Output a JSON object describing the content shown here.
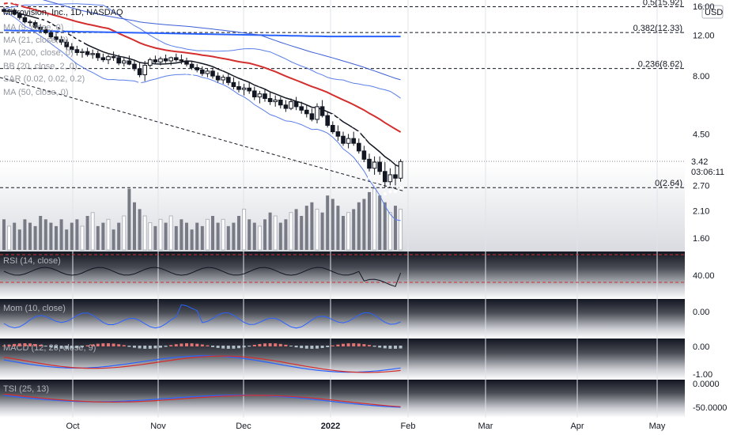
{
  "header": {
    "symbol_line": "Microvision, Inc., 1D, NASDAQ",
    "currency": "USD"
  },
  "legends": [
    "MA (9, close, 0)",
    "MA (21, close, 0)",
    "MA (200, close, 0)",
    "BB (20, close, 2, 0)",
    "SAR (0.02, 0.02, 0.2)",
    "MA (50, close, 0)"
  ],
  "fib_levels": [
    {
      "label": "0.5(15.92)",
      "value": 15.92
    },
    {
      "label": "0.382(12.33)",
      "value": 12.33
    },
    {
      "label": "0.236(8.62)",
      "value": 8.62
    },
    {
      "label": "0(2.64)",
      "value": 2.64
    }
  ],
  "price_badge": {
    "price": "3.42",
    "countdown": "03:06:11",
    "value": 3.42
  },
  "colors": {
    "up": "#ffffff",
    "down": "#131722",
    "ma_black": "#131722",
    "ma_red": "#d32f2f",
    "ma_blue": "#2962ff",
    "bb": "#2962ff",
    "sar": "#ffffff",
    "rsi_band": "#d32f2f",
    "volume": "#787b86"
  },
  "chart_data": {
    "type": "candlestick",
    "x_axis_labels": [
      "Oct",
      "Nov",
      "Dec",
      "2022",
      "Feb",
      "Mar",
      "Apr",
      "May"
    ],
    "y_axis_labels": [
      "16.00",
      "12.00",
      "8.00",
      "4.50",
      "2.70",
      "2.10",
      "1.60"
    ],
    "y_scale": "log",
    "candles": [
      [
        15.5,
        15.9,
        14.9,
        15.2
      ],
      [
        15.2,
        15.6,
        14.7,
        15.4
      ],
      [
        15.4,
        15.7,
        14.6,
        14.8
      ],
      [
        14.8,
        15.1,
        14.0,
        14.3
      ],
      [
        14.3,
        14.6,
        13.5,
        13.7
      ],
      [
        13.7,
        14.0,
        13.1,
        13.6
      ],
      [
        13.6,
        13.9,
        12.8,
        13.0
      ],
      [
        13.0,
        13.4,
        12.4,
        12.7
      ],
      [
        12.7,
        13.1,
        12.1,
        12.3
      ],
      [
        12.3,
        12.6,
        11.6,
        11.8
      ],
      [
        11.8,
        12.2,
        11.2,
        11.5
      ],
      [
        11.5,
        11.9,
        10.9,
        11.2
      ],
      [
        11.2,
        11.5,
        10.4,
        10.7
      ],
      [
        10.7,
        11.1,
        10.1,
        10.4
      ],
      [
        10.4,
        10.8,
        9.8,
        10.1
      ],
      [
        10.1,
        10.5,
        9.6,
        10.2
      ],
      [
        10.2,
        10.6,
        9.7,
        9.9
      ],
      [
        9.9,
        10.4,
        9.5,
        10.0
      ],
      [
        10.0,
        10.3,
        9.3,
        9.6
      ],
      [
        9.6,
        10.0,
        9.2,
        9.4
      ],
      [
        9.4,
        9.9,
        9.0,
        9.7
      ],
      [
        9.7,
        10.2,
        9.3,
        9.6
      ],
      [
        9.6,
        9.9,
        8.9,
        9.1
      ],
      [
        9.1,
        9.6,
        8.8,
        9.3
      ],
      [
        9.3,
        9.8,
        8.9,
        9.0
      ],
      [
        9.0,
        9.4,
        8.4,
        8.6
      ],
      [
        8.6,
        9.2,
        7.9,
        8.1
      ],
      [
        8.1,
        9.3,
        7.6,
        8.9
      ],
      [
        8.9,
        9.6,
        8.7,
        9.4
      ],
      [
        9.4,
        9.8,
        9.0,
        9.2
      ],
      [
        9.2,
        9.7,
        8.9,
        9.5
      ],
      [
        9.5,
        9.9,
        9.1,
        9.3
      ],
      [
        9.3,
        9.7,
        8.9,
        9.6
      ],
      [
        9.6,
        10.0,
        9.2,
        9.4
      ],
      [
        9.4,
        9.9,
        9.0,
        9.3
      ],
      [
        9.3,
        9.6,
        8.8,
        9.0
      ],
      [
        9.0,
        9.3,
        8.5,
        8.7
      ],
      [
        8.7,
        9.0,
        8.3,
        8.5
      ],
      [
        8.5,
        8.8,
        8.0,
        8.2
      ],
      [
        8.2,
        8.6,
        7.9,
        8.4
      ],
      [
        8.4,
        8.7,
        7.8,
        8.0
      ],
      [
        8.0,
        8.3,
        7.5,
        7.7
      ],
      [
        7.7,
        8.1,
        7.4,
        7.9
      ],
      [
        7.9,
        8.2,
        7.3,
        7.5
      ],
      [
        7.5,
        7.9,
        7.0,
        7.2
      ],
      [
        7.2,
        7.6,
        6.8,
        7.0
      ],
      [
        7.0,
        7.4,
        6.6,
        7.1
      ],
      [
        7.1,
        7.5,
        6.7,
        6.9
      ],
      [
        6.9,
        7.2,
        6.3,
        6.5
      ],
      [
        6.5,
        6.9,
        6.1,
        6.7
      ],
      [
        6.7,
        7.0,
        6.2,
        6.4
      ],
      [
        6.4,
        6.8,
        6.0,
        6.2
      ],
      [
        6.2,
        6.6,
        5.9,
        6.3
      ],
      [
        6.3,
        6.5,
        5.8,
        6.0
      ],
      [
        6.0,
        6.3,
        5.6,
        5.8
      ],
      [
        5.8,
        6.4,
        5.7,
        6.2
      ],
      [
        6.2,
        6.5,
        5.7,
        5.9
      ],
      [
        5.9,
        6.2,
        5.5,
        5.7
      ],
      [
        5.7,
        6.0,
        5.3,
        5.5
      ],
      [
        5.5,
        5.8,
        5.1,
        5.2
      ],
      [
        5.2,
        6.1,
        5.0,
        5.9
      ],
      [
        5.9,
        6.3,
        5.3,
        5.4
      ],
      [
        5.4,
        5.6,
        4.8,
        4.9
      ],
      [
        4.9,
        5.1,
        4.5,
        4.6
      ],
      [
        4.6,
        4.9,
        4.2,
        4.4
      ],
      [
        4.4,
        4.6,
        4.0,
        4.1
      ],
      [
        4.1,
        4.5,
        3.9,
        4.3
      ],
      [
        4.3,
        4.6,
        4.0,
        4.1
      ],
      [
        4.1,
        4.3,
        3.7,
        3.8
      ],
      [
        3.8,
        4.0,
        3.4,
        3.5
      ],
      [
        3.5,
        3.7,
        3.1,
        3.2
      ],
      [
        3.2,
        3.6,
        3.0,
        3.4
      ],
      [
        3.4,
        3.6,
        3.0,
        3.1
      ],
      [
        3.1,
        3.4,
        2.64,
        2.8
      ],
      [
        2.8,
        3.2,
        2.7,
        3.0
      ],
      [
        3.0,
        3.3,
        2.7,
        2.9
      ],
      [
        2.9,
        3.5,
        2.8,
        3.42
      ]
    ],
    "volume": [
      9,
      7,
      8,
      6,
      9,
      8,
      7,
      10,
      9,
      8,
      7,
      9,
      6,
      8,
      9,
      7,
      10,
      11,
      7,
      8,
      9,
      6,
      8,
      10,
      18,
      14,
      12,
      10,
      8,
      7,
      9,
      8,
      10,
      7,
      9,
      8,
      6,
      8,
      7,
      9,
      10,
      8,
      9,
      7,
      8,
      10,
      12,
      9,
      8,
      7,
      9,
      11,
      10,
      8,
      9,
      11,
      12,
      10,
      13,
      14,
      12,
      11,
      16,
      15,
      13,
      10,
      11,
      12,
      14,
      15,
      17,
      18,
      16,
      14,
      11,
      13,
      12
    ],
    "rsi_bands": [
      70,
      30
    ],
    "rsi_axis_label": "40.00",
    "mom_axis_label": "0.00",
    "macd_axis_labels": [
      "0.00",
      "-1.00"
    ],
    "ao_axis_labels": [
      "0.0000",
      "-50.0000"
    ]
  }
}
